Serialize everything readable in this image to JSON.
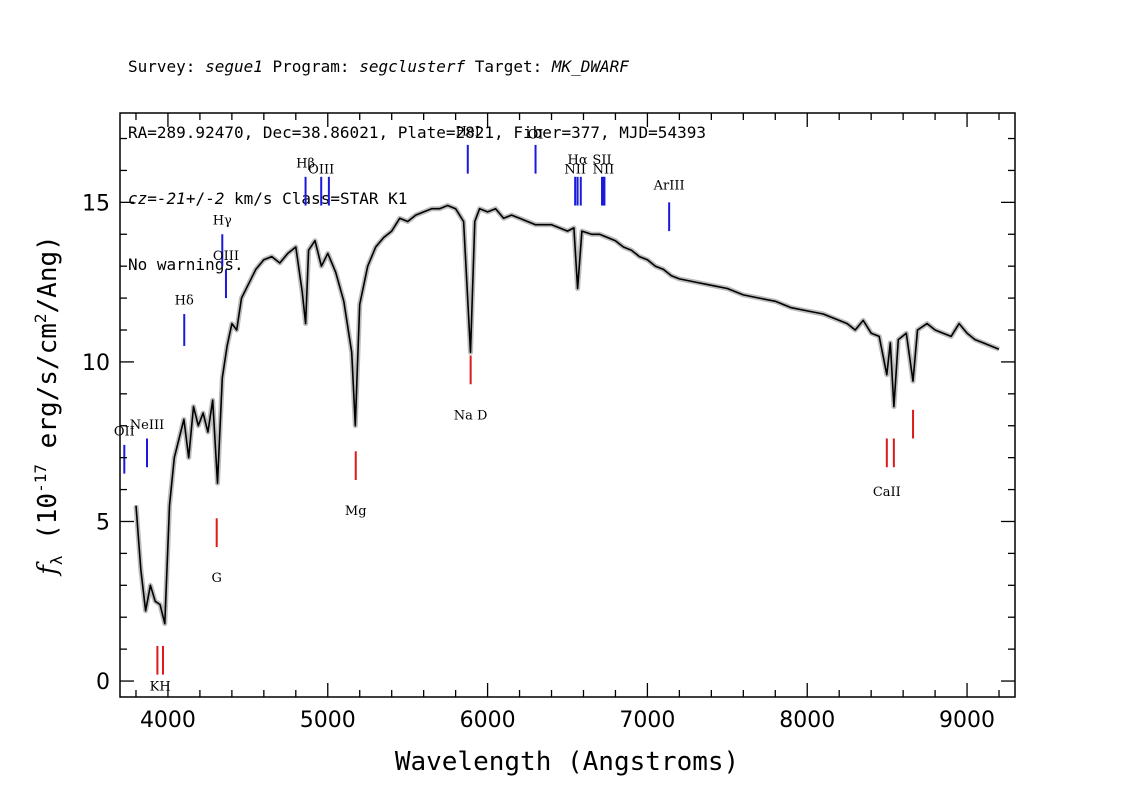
{
  "header": {
    "survey_label": "Survey: ",
    "survey": "segue1",
    "program_label": " Program: ",
    "program": "segclusterf",
    "target_label": " Target: ",
    "target": "MK_DWARF",
    "line2": "RA=289.92470, Dec=38.86021, Plate=2821, Fiber=377, MJD=54393",
    "cz_prefix": "cz",
    "cz_eq": "=",
    "cz_value": "-21",
    "cz_pm": "+/-",
    "cz_err": "2",
    "cz_rest": " km/s Class=STAR K1",
    "line4": "No warnings."
  },
  "colors": {
    "spectrum": "#000000",
    "error_band": "#bdbdbd",
    "emission_lines": "#1a1adc",
    "absorption_lines": "#dc1a1a",
    "frame": "#000000"
  },
  "chart_data": {
    "type": "line",
    "xlabel": "Wavelength (Angstroms)",
    "ylabel": "f_λ (10^-17 erg/s/cm^2/Ang)",
    "xlim": [
      3700,
      9300
    ],
    "ylim": [
      -0.5,
      17.8
    ],
    "xticks": [
      4000,
      5000,
      6000,
      7000,
      8000,
      9000
    ],
    "yticks": [
      0,
      5,
      10,
      15
    ],
    "series": [
      {
        "x": [
          3800,
          3830,
          3860,
          3890,
          3920,
          3950,
          3980,
          4010,
          4040,
          4070,
          4100,
          4130,
          4160,
          4190,
          4220,
          4250,
          4280,
          4310,
          4340,
          4370,
          4400,
          4430,
          4460,
          4500,
          4550,
          4600,
          4650,
          4700,
          4750,
          4800,
          4840,
          4861,
          4880,
          4920,
          4960,
          5000,
          5050,
          5100,
          5150,
          5172,
          5183,
          5200,
          5250,
          5300,
          5350,
          5400,
          5450,
          5500,
          5550,
          5600,
          5650,
          5700,
          5750,
          5800,
          5850,
          5893,
          5920,
          5950,
          6000,
          6050,
          6100,
          6150,
          6200,
          6250,
          6300,
          6350,
          6400,
          6450,
          6500,
          6540,
          6563,
          6590,
          6650,
          6700,
          6750,
          6800,
          6850,
          6900,
          6950,
          7000,
          7050,
          7100,
          7150,
          7200,
          7300,
          7400,
          7500,
          7600,
          7700,
          7800,
          7900,
          8000,
          8100,
          8200,
          8250,
          8300,
          8350,
          8400,
          8450,
          8498,
          8520,
          8542,
          8570,
          8620,
          8662,
          8690,
          8750,
          8800,
          8850,
          8900,
          8950,
          9000,
          9050,
          9100,
          9150,
          9200
        ],
        "y": [
          5.5,
          3.5,
          2.2,
          3.0,
          2.5,
          2.4,
          1.8,
          5.5,
          7.0,
          7.6,
          8.2,
          7.0,
          8.6,
          8.0,
          8.4,
          7.8,
          8.8,
          6.2,
          9.5,
          10.5,
          11.2,
          11.0,
          12.0,
          12.4,
          12.9,
          13.2,
          13.3,
          13.1,
          13.4,
          13.6,
          12.2,
          11.2,
          13.5,
          13.8,
          13.0,
          13.4,
          12.8,
          11.9,
          10.3,
          8.0,
          9.5,
          11.8,
          13.0,
          13.6,
          13.9,
          14.1,
          14.5,
          14.4,
          14.6,
          14.7,
          14.8,
          14.8,
          14.9,
          14.8,
          14.4,
          10.3,
          14.4,
          14.8,
          14.7,
          14.8,
          14.5,
          14.6,
          14.5,
          14.4,
          14.3,
          14.3,
          14.3,
          14.2,
          14.1,
          14.2,
          12.3,
          14.1,
          14.0,
          14.0,
          13.9,
          13.8,
          13.6,
          13.5,
          13.3,
          13.2,
          13.0,
          12.9,
          12.7,
          12.6,
          12.5,
          12.4,
          12.3,
          12.1,
          12.0,
          11.9,
          11.7,
          11.6,
          11.5,
          11.3,
          11.2,
          11.0,
          11.3,
          10.9,
          10.8,
          9.6,
          10.6,
          8.6,
          10.7,
          10.9,
          9.4,
          11.0,
          11.2,
          11.0,
          10.9,
          10.8,
          11.2,
          10.9,
          10.7,
          10.6,
          10.5,
          10.4
        ]
      }
    ],
    "line_markers": [
      {
        "label": "OII",
        "x": 3727,
        "kind": "emission",
        "bottom": 6.5,
        "top": 7.4,
        "label_y": 7.7
      },
      {
        "label": "NeIII",
        "x": 3869,
        "kind": "emission",
        "bottom": 6.7,
        "top": 7.6,
        "label_y": 7.9
      },
      {
        "label": "Hδ",
        "x": 4102,
        "kind": "emission",
        "bottom": 10.5,
        "top": 11.5,
        "label_y": 11.8
      },
      {
        "label": "Hγ",
        "x": 4340,
        "kind": "emission",
        "bottom": 13.0,
        "top": 14.0,
        "label_y": 14.3
      },
      {
        "label": "OIII",
        "x": 4363,
        "kind": "emission",
        "bottom": 12.0,
        "top": 12.9,
        "label_y": 13.2
      },
      {
        "label": "Hβ",
        "x": 4861,
        "kind": "emission",
        "bottom": 14.9,
        "top": 15.8,
        "label_y": 16.1
      },
      {
        "label": "OIII",
        "x": 4959,
        "kind": "emission",
        "bottom": 14.9,
        "top": 15.8,
        "label_y": 15.9
      },
      {
        "label": "OIII",
        "x": 5007,
        "kind": "emission",
        "bottom": 14.9,
        "top": 15.8,
        "label_y": null
      },
      {
        "label": "HeI",
        "x": 5876,
        "kind": "emission",
        "bottom": 15.9,
        "top": 16.8,
        "label_y": 17.1
      },
      {
        "label": "OI",
        "x": 6300,
        "kind": "emission",
        "bottom": 15.9,
        "top": 16.8,
        "label_y": 17.0
      },
      {
        "label": "NII",
        "x": 6548,
        "kind": "emission",
        "bottom": 14.9,
        "top": 15.8,
        "label_y": 15.9
      },
      {
        "label": "Hα",
        "x": 6563,
        "kind": "emission",
        "bottom": 14.9,
        "top": 15.8,
        "label_y": 16.2
      },
      {
        "label": "NII",
        "x": 6583,
        "kind": "emission",
        "bottom": 14.9,
        "top": 15.8,
        "label_y": null
      },
      {
        "label": "SII",
        "x": 6716,
        "kind": "emission",
        "bottom": 14.9,
        "top": 15.8,
        "label_y": 16.2
      },
      {
        "label": "NII",
        "x": 6725,
        "kind": "emission",
        "bottom": 14.9,
        "top": 15.8,
        "label_y": 15.9
      },
      {
        "label": "SII",
        "x": 6731,
        "kind": "emission",
        "bottom": 14.9,
        "top": 15.8,
        "label_y": null
      },
      {
        "label": "ArIII",
        "x": 7136,
        "kind": "emission",
        "bottom": 14.1,
        "top": 15.0,
        "label_y": 15.4
      },
      {
        "label": "K",
        "x": 3934,
        "kind": "absorption",
        "bottom": 0.2,
        "top": 1.1,
        "label_y": -0.3
      },
      {
        "label": "H",
        "x": 3969,
        "kind": "absorption",
        "bottom": 0.2,
        "top": 1.1,
        "label_y": -0.3
      },
      {
        "label": "G",
        "x": 4305,
        "kind": "absorption",
        "bottom": 4.2,
        "top": 5.1,
        "label_y": 3.1
      },
      {
        "label": "Mg",
        "x": 5175,
        "kind": "absorption",
        "bottom": 6.3,
        "top": 7.2,
        "label_y": 5.2
      },
      {
        "label": "Na D",
        "x": 5894,
        "kind": "absorption",
        "bottom": 9.3,
        "top": 10.2,
        "label_y": 8.2
      },
      {
        "label": "CaII",
        "x": 8498,
        "kind": "absorption",
        "bottom": 6.7,
        "top": 7.6,
        "label_y": 5.8
      },
      {
        "label": "CaII",
        "x": 8542,
        "kind": "absorption",
        "bottom": 6.7,
        "top": 7.6,
        "label_y": null
      },
      {
        "label": "CaII",
        "x": 8662,
        "kind": "absorption",
        "bottom": 7.6,
        "top": 8.5,
        "label_y": null
      }
    ]
  }
}
